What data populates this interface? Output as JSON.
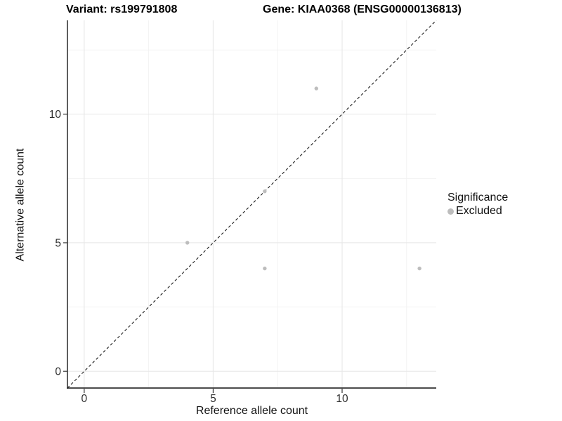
{
  "header": {
    "variant_title": "Variant: rs199791808",
    "gene_title": "Gene: KIAA0368 (ENSG00000136813)"
  },
  "chart_data": {
    "type": "scatter",
    "title_left": "Variant: rs199791808",
    "title_right": "Gene: KIAA0368 (ENSG00000136813)",
    "xlabel": "Reference allele count",
    "ylabel": "Alternative allele count",
    "xlim": [
      -0.65,
      13.65
    ],
    "ylim": [
      -0.65,
      13.65
    ],
    "x_major_ticks": [
      0,
      5,
      10
    ],
    "y_major_ticks": [
      0,
      5,
      10
    ],
    "x_minor_gridlines": [
      2.5,
      7.5,
      12.5
    ],
    "y_minor_gridlines": [
      2.5,
      7.5,
      12.5
    ],
    "grid": true,
    "identity_line": {
      "type": "dashed",
      "slope": 1,
      "intercept": 0
    },
    "series": [
      {
        "name": "Excluded",
        "point_color": "#bdbdbd",
        "points": [
          {
            "x": 4,
            "y": 5
          },
          {
            "x": 7,
            "y": 4
          },
          {
            "x": 7,
            "y": 7
          },
          {
            "x": 9,
            "y": 11
          },
          {
            "x": 13,
            "y": 4
          }
        ]
      }
    ],
    "legend": {
      "title": "Significance",
      "position": "right",
      "entries": [
        {
          "label": "Excluded",
          "color": "#bdbdbd"
        }
      ]
    },
    "colors": {
      "background": "#ffffff",
      "grid_major": "#e7e7e7",
      "grid_minor": "#f1f1f1",
      "axis_line": "#1a1a1a",
      "tick_mark": "#333333",
      "tick_label": "#2e2e2e",
      "identity_line": "#1a1a1a",
      "point": "#bdbdbd"
    }
  }
}
